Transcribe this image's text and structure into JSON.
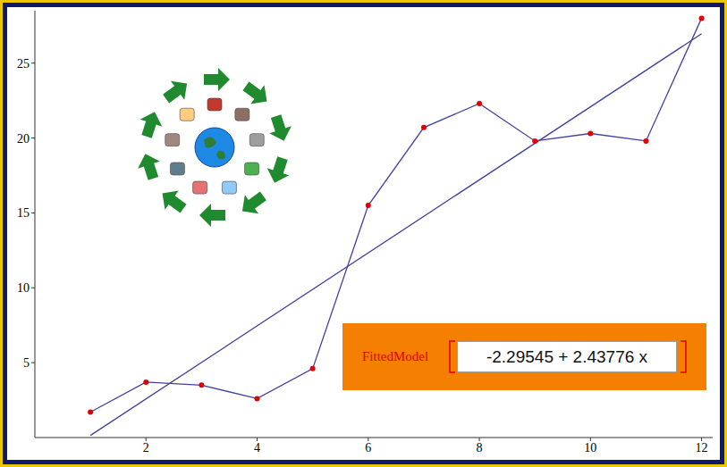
{
  "chart_data": {
    "type": "line",
    "x": [
      1,
      2,
      3,
      4,
      5,
      6,
      7,
      8,
      9,
      10,
      11,
      12
    ],
    "series": [
      {
        "type": "line",
        "color": "#40409c",
        "marker": "circle",
        "values": [
          1.7,
          3.7,
          3.5,
          2.6,
          4.6,
          15.5,
          20.7,
          22.3,
          19.8,
          20.3,
          19.8,
          28.0
        ]
      },
      {
        "type": "line",
        "color": "#40409c",
        "marker": "none",
        "x": [
          1,
          12
        ],
        "values": [
          0.14,
          26.96
        ]
      }
    ],
    "xlim": [
      0,
      12.2
    ],
    "ylim": [
      0,
      28.5
    ],
    "xticks": [
      2,
      4,
      6,
      8,
      10,
      12
    ],
    "yticks": [
      5,
      10,
      15,
      20,
      25
    ],
    "grid": false,
    "annotation": {
      "function": "FittedModel",
      "expression": "-2.29545 + 2.43776 x"
    }
  }
}
